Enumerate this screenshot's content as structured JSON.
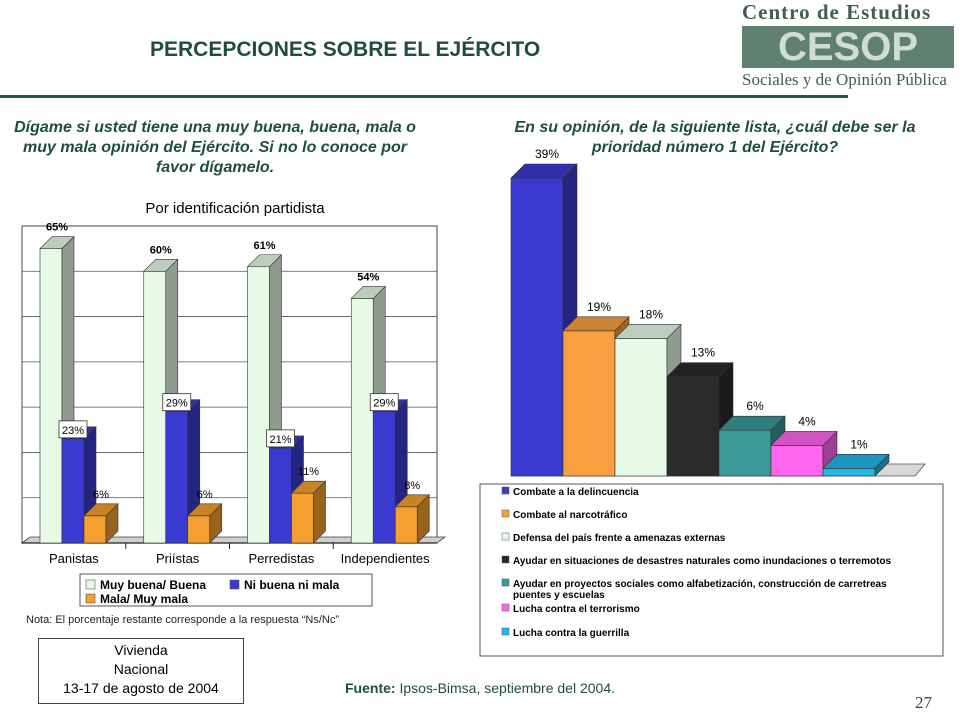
{
  "header": {
    "title": "PERCEPCIONES SOBRE EL EJÉRCITO",
    "logo_top": "Centro de Estudios",
    "logo_mark": "CESOP",
    "logo_bottom": "Sociales y de Opinión Pública"
  },
  "left_question": "Dígame si usted tiene una muy buena, buena, mala o muy mala opinión del Ejército. Si no lo conoce por favor dígamelo.",
  "right_question": "En su opinión, de la siguiente lista, ¿cuál debe ser la prioridad número 1 del Ejército?",
  "note": "Nota: El porcentaje restante corresponde a la respuesta “Ns/Nc”",
  "vivienda": {
    "line1": "Vivienda",
    "line2": "Nacional",
    "line3": "13-17 de agosto de 2004"
  },
  "source": {
    "label": "Fuente:",
    "text": " Ipsos-Bimsa, septiembre del 2004."
  },
  "page_number": "27",
  "colors": {
    "green": "#1f4e3d",
    "bar_light": "#e6fae6",
    "bar_blue": "#3a3ad0",
    "bar_orange": "#f4a030"
  },
  "chart_data": [
    {
      "type": "bar",
      "title": "Por identificación partidista",
      "categories": [
        "Panistas",
        "Priístas",
        "Perredistas",
        "Independientes"
      ],
      "series": [
        {
          "name": "Muy buena/ Buena",
          "values": [
            65,
            60,
            61,
            54
          ],
          "labels": [
            "65%",
            "60%",
            "61%",
            "54%"
          ],
          "color": "#e6fae6"
        },
        {
          "name": "Ni buena ni mala",
          "values": [
            23,
            29,
            21,
            29
          ],
          "labels": [
            "23%",
            "29%",
            "21%",
            "29%"
          ],
          "color": "#3a3ad0"
        },
        {
          "name": "Mala/ Muy mala",
          "values": [
            6,
            6,
            11,
            8
          ],
          "labels": [
            "6%",
            "6%",
            "11%",
            "8%"
          ],
          "color": "#f4a030"
        }
      ],
      "ylim": [
        0,
        70
      ],
      "grid": true,
      "legend": "bottom"
    },
    {
      "type": "bar",
      "title": "",
      "categories": [
        "Combate a la delincuencia",
        "Combate al narcotráfico",
        "Defensa del país frente a amenazas externas",
        "Ayudar en situaciones de desastres naturales como inundaciones o terremotos",
        "Ayudar en proyectos sociales como alfabetización, construcción de carretreas puentes y escuelas",
        "Lucha contra el terrorismo",
        "Lucha contra la guerrilla"
      ],
      "values": [
        39,
        19,
        18,
        13,
        6,
        4,
        1
      ],
      "labels": [
        "39%",
        "19%",
        "18%",
        "13%",
        "6%",
        "4%",
        "1%"
      ],
      "colors": [
        "#3a3ad0",
        "#f8a040",
        "#e6fae6",
        "#2a2a2a",
        "#3a9a9a",
        "#ff66ee",
        "#22b8e8"
      ],
      "ylim": [
        0,
        39
      ],
      "legend": "bottom"
    }
  ]
}
